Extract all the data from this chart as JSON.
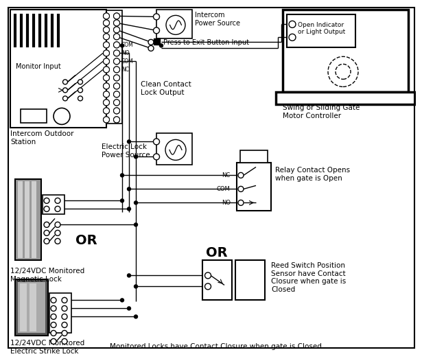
{
  "bg_color": "#ffffff",
  "labels": {
    "intercom_power": "Intercom\nPower Source",
    "press_exit": "Press to Exit Button Input",
    "clean_contact": "Clean Contact\nLock Output",
    "monitor_input": "Monitor Input",
    "outdoor_station": "Intercom Outdoor\nStation",
    "electric_lock_power": "Electric Lock\nPower Source",
    "magnetic_lock": "12/24VDC Monitored\nMagnetic Lock",
    "electric_strike": "12/24VDC Monitored\nElectric Strike Lock",
    "gate_motor": "Swing or Sliding Gate\nMotor Controller",
    "open_indicator": "Open Indicator\nor Light Output",
    "relay_contact": "Relay Contact Opens\nwhen gate is Open",
    "reed_switch": "Reed Switch Position\nSensor have Contact\nClosure when gate is\nClosed",
    "or1": "OR",
    "or2": "OR",
    "bottom_note": "Monitored Locks have Contact Closure when gate is Closed",
    "com_label": "COM",
    "no_label": "NO",
    "com2_label": "COM",
    "nc_label": "NC",
    "nc_relay": "NC",
    "com_relay": "COM",
    "no_relay": "NO"
  }
}
